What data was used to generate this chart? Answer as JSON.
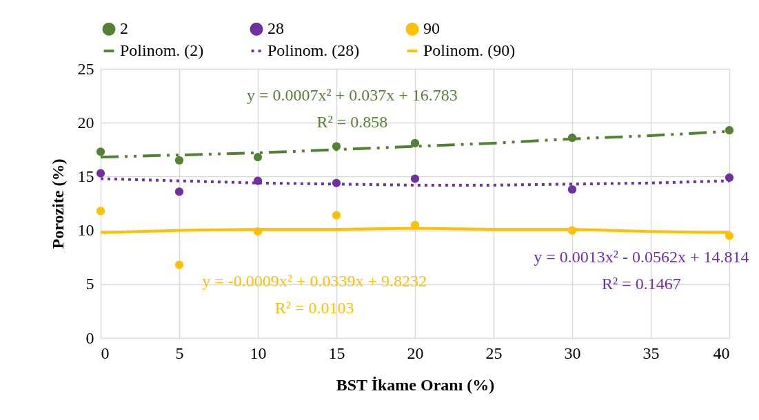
{
  "chart_data": {
    "type": "scatter",
    "xlabel": "BST  İkame Oranı (%)",
    "ylabel": "Porozite (%)",
    "xlim": [
      0,
      40
    ],
    "xticks": [
      0,
      5,
      10,
      15,
      20,
      25,
      30,
      35,
      40
    ],
    "ylim": [
      0,
      25
    ],
    "yticks": [
      0,
      5,
      10,
      15,
      20,
      25
    ],
    "grid": true,
    "legend": "top",
    "series": [
      {
        "name": "2",
        "color": "#548235",
        "type": "scatter",
        "marker": "circle",
        "x": [
          0,
          5,
          10,
          15,
          20,
          30,
          40
        ],
        "values": [
          17.3,
          16.5,
          16.8,
          17.8,
          18.1,
          18.6,
          19.3
        ]
      },
      {
        "name": "28",
        "color": "#7030a0",
        "type": "scatter",
        "marker": "circle",
        "x": [
          0,
          5,
          10,
          15,
          20,
          30,
          40
        ],
        "values": [
          15.3,
          13.6,
          14.6,
          14.4,
          14.8,
          13.8,
          14.9
        ]
      },
      {
        "name": "90",
        "color": "#ffc000",
        "type": "scatter",
        "marker": "circle",
        "x": [
          0,
          5,
          10,
          15,
          20,
          30,
          40
        ],
        "values": [
          11.8,
          6.8,
          9.9,
          11.4,
          10.5,
          10.0,
          9.5
        ]
      },
      {
        "name": "Polinom. (2)",
        "color": "#548235",
        "type": "line",
        "line_style": "dashed",
        "x": [
          0,
          5,
          10,
          15,
          20,
          25,
          30,
          35,
          40
        ],
        "values": [
          16.8,
          17.0,
          17.2,
          17.5,
          17.8,
          18.1,
          18.5,
          18.8,
          19.2
        ]
      },
      {
        "name": "Polinom. (28)",
        "color": "#7030a0",
        "type": "line",
        "line_style": "dotted",
        "x": [
          0,
          5,
          10,
          15,
          20,
          25,
          30,
          35,
          40
        ],
        "values": [
          14.8,
          14.6,
          14.4,
          14.3,
          14.2,
          14.2,
          14.3,
          14.4,
          14.6
        ]
      },
      {
        "name": "Polinom. (90)",
        "color": "#ffc000",
        "type": "line",
        "line_style": "solid",
        "x": [
          0,
          5,
          10,
          15,
          20,
          25,
          30,
          35,
          40
        ],
        "values": [
          9.8,
          10.0,
          10.1,
          10.1,
          10.2,
          10.1,
          10.1,
          9.9,
          9.8
        ]
      }
    ],
    "annotations": [
      "y = 0.0007x² + 0.037x + 16.783",
      "R² = 0.858",
      "y = 0.0013x² - 0.0562x + 14.814",
      "R² = 0.1467",
      "y = -0.0009x² + 0.0339x + 9.8232",
      "R² = 0.0103"
    ]
  }
}
